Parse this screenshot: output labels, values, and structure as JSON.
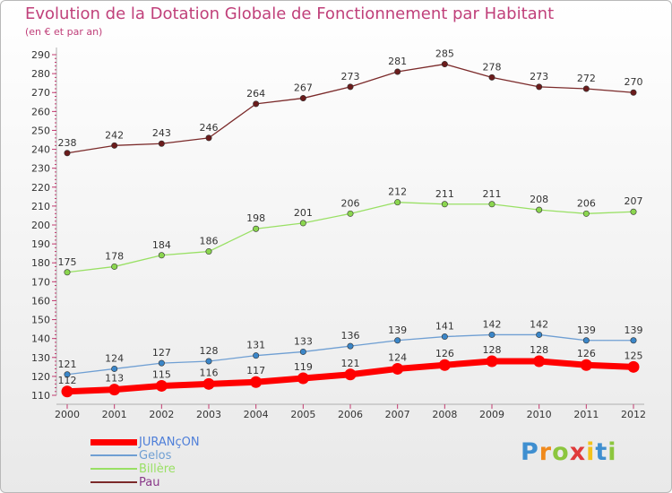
{
  "title": "Evolution de la Dotation Globale de Fonctionnement par Habitant",
  "subtitle": "(en € et par an)",
  "logo_text": "Proxiti",
  "chart_data": {
    "type": "line",
    "title": "Evolution de la Dotation Globale de Fonctionnement par Habitant",
    "subtitle": "(en € et par an)",
    "x": [
      2000,
      2001,
      2002,
      2003,
      2004,
      2005,
      2006,
      2007,
      2008,
      2009,
      2010,
      2011,
      2012
    ],
    "x_tick_labels": [
      "2000",
      "2001",
      "2002",
      "2003",
      "2004",
      "2005",
      "2006",
      "2007",
      "2008",
      "2009",
      "2010",
      "2011",
      "2012"
    ],
    "ylim": [
      110,
      290
    ],
    "y_ticks": [
      110,
      120,
      130,
      140,
      150,
      160,
      170,
      180,
      190,
      200,
      210,
      220,
      230,
      240,
      250,
      260,
      270,
      280,
      290
    ],
    "grid": false,
    "legend_position": "bottom-left",
    "series": [
      {
        "name": "JURANçON",
        "color": "#ff0000",
        "marker_color": "#ff0000",
        "width": "thick",
        "values": [
          112,
          113,
          115,
          116,
          117,
          119,
          121,
          124,
          126,
          128,
          128,
          126,
          125
        ]
      },
      {
        "name": "Gelos",
        "color": "#6f9fd3",
        "marker_color": "#3b86c8",
        "width": "thin",
        "values": [
          121,
          124,
          127,
          128,
          131,
          133,
          136,
          139,
          141,
          142,
          142,
          139,
          139
        ]
      },
      {
        "name": "Billère",
        "color": "#99e064",
        "marker_color": "#8bd64f",
        "width": "thin",
        "values": [
          175,
          178,
          184,
          186,
          198,
          201,
          206,
          212,
          211,
          211,
          208,
          206,
          207
        ]
      },
      {
        "name": "Pau",
        "color": "#7b2a2a",
        "marker_color": "#6b1c1c",
        "width": "thin",
        "values": [
          238,
          242,
          243,
          246,
          264,
          267,
          273,
          281,
          285,
          278,
          273,
          272,
          270
        ]
      }
    ]
  }
}
